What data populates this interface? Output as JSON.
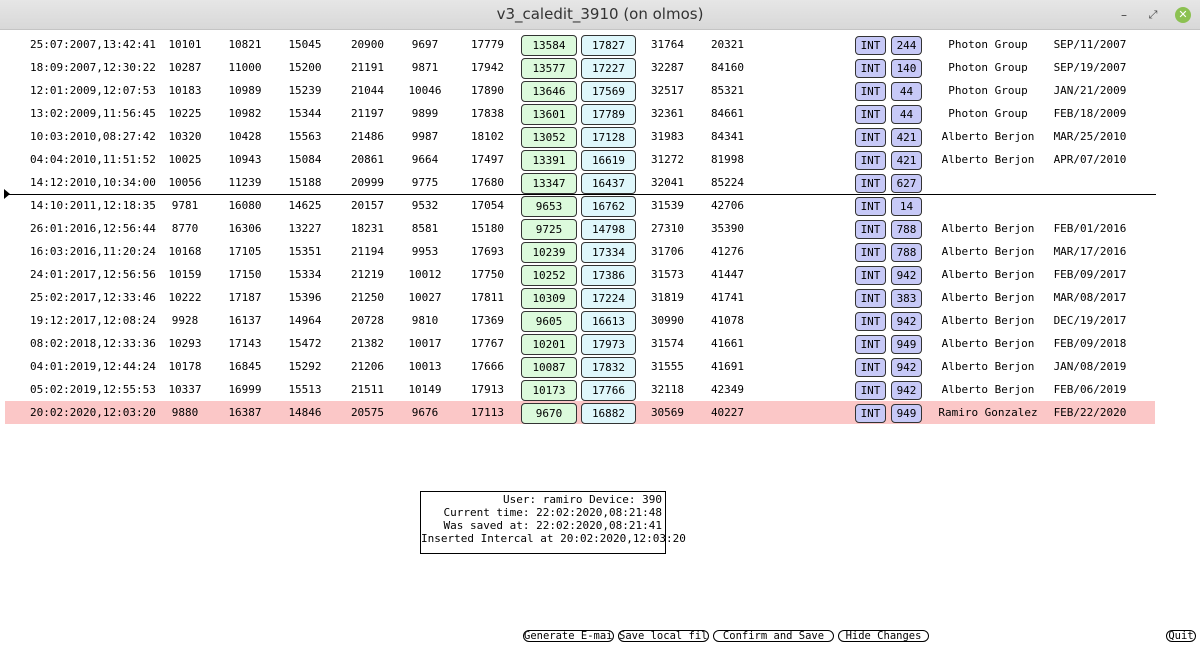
{
  "window": {
    "title": "v3_caledit_3910 (on olmos)"
  },
  "rows": [
    {
      "date": "25:07:2007,13:42:41",
      "v1": "10101",
      "v2": "10821",
      "v3": "15045",
      "v4": "20900",
      "v5": "9697",
      "v6": "17779",
      "g": "13584",
      "c": "17827",
      "v9": "31764",
      "v10": "20321",
      "tag": "INT",
      "num": "244",
      "name": "Photon Group",
      "date2": "SEP/11/2007"
    },
    {
      "date": "18:09:2007,12:30:22",
      "v1": "10287",
      "v2": "11000",
      "v3": "15200",
      "v4": "21191",
      "v5": "9871",
      "v6": "17942",
      "g": "13577",
      "c": "17227",
      "v9": "32287",
      "v10": "84160",
      "tag": "INT",
      "num": "140",
      "name": "Photon Group",
      "date2": "SEP/19/2007"
    },
    {
      "date": "12:01:2009,12:07:53",
      "v1": "10183",
      "v2": "10989",
      "v3": "15239",
      "v4": "21044",
      "v5": "10046",
      "v6": "17890",
      "g": "13646",
      "c": "17569",
      "v9": "32517",
      "v10": "85321",
      "tag": "INT",
      "num": "44",
      "name": "Photon Group",
      "date2": "JAN/21/2009"
    },
    {
      "date": "13:02:2009,11:56:45",
      "v1": "10225",
      "v2": "10982",
      "v3": "15344",
      "v4": "21197",
      "v5": "9899",
      "v6": "17838",
      "g": "13601",
      "c": "17789",
      "v9": "32361",
      "v10": "84661",
      "tag": "INT",
      "num": "44",
      "name": "Photon Group",
      "date2": "FEB/18/2009"
    },
    {
      "date": "10:03:2010,08:27:42",
      "v1": "10320",
      "v2": "10428",
      "v3": "15563",
      "v4": "21486",
      "v5": "9987",
      "v6": "18102",
      "g": "13052",
      "c": "17128",
      "v9": "31983",
      "v10": "84341",
      "tag": "INT",
      "num": "421",
      "name": "Alberto Berjon",
      "date2": "MAR/25/2010"
    },
    {
      "date": "04:04:2010,11:51:52",
      "v1": "10025",
      "v2": "10943",
      "v3": "15084",
      "v4": "20861",
      "v5": "9664",
      "v6": "17497",
      "g": "13391",
      "c": "16619",
      "v9": "31272",
      "v10": "81998",
      "tag": "INT",
      "num": "421",
      "name": "Alberto Berjon",
      "date2": "APR/07/2010"
    },
    {
      "date": "14:12:2010,10:34:00",
      "v1": "10056",
      "v2": "11239",
      "v3": "15188",
      "v4": "20999",
      "v5": "9775",
      "v6": "17680",
      "g": "13347",
      "c": "16437",
      "v9": "32041",
      "v10": "85224",
      "tag": "INT",
      "num": "627",
      "name": "",
      "date2": ""
    },
    {
      "date": "14:10:2011,12:18:35",
      "v1": "9781",
      "v2": "16080",
      "v3": "14625",
      "v4": "20157",
      "v5": "9532",
      "v6": "17054",
      "g": "9653",
      "c": "16762",
      "v9": "31539",
      "v10": "42706",
      "tag": "INT",
      "num": "14",
      "name": "",
      "date2": ""
    },
    {
      "date": "26:01:2016,12:56:44",
      "v1": "8770",
      "v2": "16306",
      "v3": "13227",
      "v4": "18231",
      "v5": "8581",
      "v6": "15180",
      "g": "9725",
      "c": "14798",
      "v9": "27310",
      "v10": "35390",
      "tag": "INT",
      "num": "788",
      "name": "Alberto Berjon",
      "date2": "FEB/01/2016"
    },
    {
      "date": "16:03:2016,11:20:24",
      "v1": "10168",
      "v2": "17105",
      "v3": "15351",
      "v4": "21194",
      "v5": "9953",
      "v6": "17693",
      "g": "10239",
      "c": "17334",
      "v9": "31706",
      "v10": "41276",
      "tag": "INT",
      "num": "788",
      "name": "Alberto Berjon",
      "date2": "MAR/17/2016"
    },
    {
      "date": "24:01:2017,12:56:56",
      "v1": "10159",
      "v2": "17150",
      "v3": "15334",
      "v4": "21219",
      "v5": "10012",
      "v6": "17750",
      "g": "10252",
      "c": "17386",
      "v9": "31573",
      "v10": "41447",
      "tag": "INT",
      "num": "942",
      "name": "Alberto Berjon",
      "date2": "FEB/09/2017"
    },
    {
      "date": "25:02:2017,12:33:46",
      "v1": "10222",
      "v2": "17187",
      "v3": "15396",
      "v4": "21250",
      "v5": "10027",
      "v6": "17811",
      "g": "10309",
      "c": "17224",
      "v9": "31819",
      "v10": "41741",
      "tag": "INT",
      "num": "383",
      "name": "Alberto Berjon",
      "date2": "MAR/08/2017"
    },
    {
      "date": "19:12:2017,12:08:24",
      "v1": "9928",
      "v2": "16137",
      "v3": "14964",
      "v4": "20728",
      "v5": "9810",
      "v6": "17369",
      "g": "9605",
      "c": "16613",
      "v9": "30990",
      "v10": "41078",
      "tag": "INT",
      "num": "942",
      "name": "Alberto Berjon",
      "date2": "DEC/19/2017"
    },
    {
      "date": "08:02:2018,12:33:36",
      "v1": "10293",
      "v2": "17143",
      "v3": "15472",
      "v4": "21382",
      "v5": "10017",
      "v6": "17767",
      "g": "10201",
      "c": "17973",
      "v9": "31574",
      "v10": "41661",
      "tag": "INT",
      "num": "949",
      "name": "Alberto Berjon",
      "date2": "FEB/09/2018"
    },
    {
      "date": "04:01:2019,12:44:24",
      "v1": "10178",
      "v2": "16845",
      "v3": "15292",
      "v4": "21206",
      "v5": "10013",
      "v6": "17666",
      "g": "10087",
      "c": "17832",
      "v9": "31555",
      "v10": "41691",
      "tag": "INT",
      "num": "942",
      "name": "Alberto Berjon",
      "date2": "JAN/08/2019"
    },
    {
      "date": "05:02:2019,12:55:53",
      "v1": "10337",
      "v2": "16999",
      "v3": "15513",
      "v4": "21511",
      "v5": "10149",
      "v6": "17913",
      "g": "10173",
      "c": "17766",
      "v9": "32118",
      "v10": "42349",
      "tag": "INT",
      "num": "942",
      "name": "Alberto Berjon",
      "date2": "FEB/06/2019"
    },
    {
      "date": "20:02:2020,12:03:20",
      "v1": "9880",
      "v2": "16387",
      "v3": "14846",
      "v4": "20575",
      "v5": "9676",
      "v6": "17113",
      "g": "9670",
      "c": "16882",
      "v9": "30569",
      "v10": "40227",
      "tag": "INT",
      "num": "949",
      "name": "Ramiro Gonzalez",
      "date2": "FEB/22/2020",
      "highlight": true
    }
  ],
  "info": {
    "line1": "User: ramiro Device: 390",
    "line2": "Current time: 22:02:2020,08:21:48",
    "line3": "Was saved at: 22:02:2020,08:21:41",
    "line4": "Inserted Intercal at 20:02:2020,12:03:20"
  },
  "buttons": {
    "email": "Generate E-mail",
    "save_local": "Save local file",
    "confirm": "Confirm and Save",
    "hide": "Hide Changes",
    "quit": "Quit"
  },
  "colors": {
    "highlight_row": "#fbc7c7",
    "green_box": "#dcfadc",
    "cyan_box": "#dff7fb",
    "int_badge": "#c7c9f7"
  }
}
